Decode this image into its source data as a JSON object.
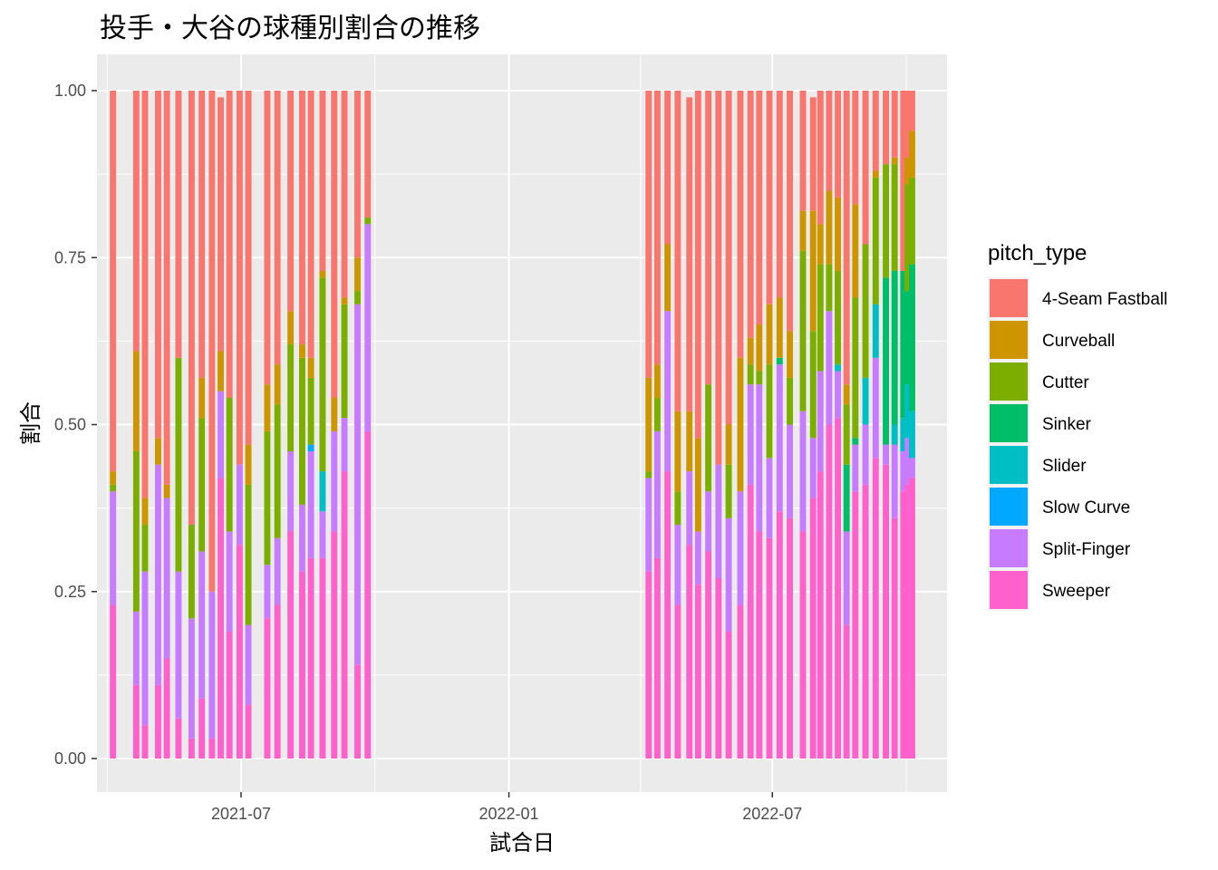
{
  "chart_data": {
    "type": "bar",
    "stacked": true,
    "title": "投手・大谷の球種別割合の推移",
    "xlabel": "試合日",
    "ylabel": "割合",
    "ylim": [
      0,
      1
    ],
    "x_range": [
      "2021-03-24",
      "2022-10-29"
    ],
    "x_ticks": [
      "2021-07",
      "2022-01",
      "2022-07"
    ],
    "y_ticks": [
      "0.00",
      "0.25",
      "0.50",
      "0.75",
      "1.00"
    ],
    "grid": true,
    "legend": {
      "title": "pitch_type",
      "position": "right",
      "entries": [
        "4-Seam Fastball",
        "Curveball",
        "Cutter",
        "Sinker",
        "Slider",
        "Slow Curve",
        "Split-Finger",
        "Sweeper"
      ]
    },
    "colors": {
      "4-Seam Fastball": "#F8766D",
      "Curveball": "#CD9600",
      "Cutter": "#7CAE00",
      "Sinker": "#00BE67",
      "Slider": "#00BFC4",
      "Slow Curve": "#00A9FF",
      "Split-Finger": "#C77CFF",
      "Sweeper": "#FF61CC"
    },
    "series_order": [
      "Sweeper",
      "Split-Finger",
      "Slow Curve",
      "Slider",
      "Sinker",
      "Cutter",
      "Curveball",
      "4-Seam Fastball"
    ],
    "bars": [
      {
        "date": "2021-04-04",
        "Sweeper": 0.23,
        "Split-Finger": 0.17,
        "Cutter": 0.01,
        "Curveball": 0.02,
        "4-Seam Fastball": 0.57
      },
      {
        "date": "2021-04-20",
        "Sweeper": 0.11,
        "Split-Finger": 0.11,
        "Cutter": 0.24,
        "Curveball": 0.15,
        "4-Seam Fastball": 0.39
      },
      {
        "date": "2021-04-26",
        "Sweeper": 0.05,
        "Split-Finger": 0.23,
        "Cutter": 0.07,
        "Curveball": 0.04,
        "4-Seam Fastball": 0.61
      },
      {
        "date": "2021-05-05",
        "Sweeper": 0.11,
        "Split-Finger": 0.33,
        "Cutter": 0.0,
        "Curveball": 0.04,
        "4-Seam Fastball": 0.52
      },
      {
        "date": "2021-05-11",
        "Sweeper": 0.15,
        "Split-Finger": 0.24,
        "Cutter": 0.0,
        "Curveball": 0.02,
        "4-Seam Fastball": 0.59
      },
      {
        "date": "2021-05-19",
        "Sweeper": 0.06,
        "Split-Finger": 0.22,
        "Cutter": 0.32,
        "Curveball": 0.0,
        "4-Seam Fastball": 0.4
      },
      {
        "date": "2021-05-28",
        "Sweeper": 0.03,
        "Split-Finger": 0.18,
        "Cutter": 0.14,
        "Curveball": 0.0,
        "4-Seam Fastball": 0.65
      },
      {
        "date": "2021-06-04",
        "Sweeper": 0.09,
        "Split-Finger": 0.22,
        "Cutter": 0.2,
        "Curveball": 0.06,
        "4-Seam Fastball": 0.43
      },
      {
        "date": "2021-06-11",
        "Sweeper": 0.03,
        "Split-Finger": 0.22,
        "Cutter": 0.0,
        "Curveball": 0.0,
        "4-Seam Fastball": 0.75
      },
      {
        "date": "2021-06-17",
        "Sweeper": 0.42,
        "Split-Finger": 0.13,
        "Cutter": 0.0,
        "Curveball": 0.06,
        "4-Seam Fastball": 0.38
      },
      {
        "date": "2021-06-23",
        "Sweeper": 0.19,
        "Split-Finger": 0.15,
        "Cutter": 0.2,
        "Curveball": 0.0,
        "4-Seam Fastball": 0.46
      },
      {
        "date": "2021-06-30",
        "Sweeper": 0.32,
        "Split-Finger": 0.12,
        "Cutter": 0.0,
        "Curveball": 0.0,
        "4-Seam Fastball": 0.56
      },
      {
        "date": "2021-07-06",
        "Sweeper": 0.08,
        "Split-Finger": 0.12,
        "Cutter": 0.21,
        "Curveball": 0.06,
        "4-Seam Fastball": 0.53
      },
      {
        "date": "2021-07-19",
        "Sweeper": 0.21,
        "Split-Finger": 0.08,
        "Cutter": 0.2,
        "Curveball": 0.07,
        "4-Seam Fastball": 0.44
      },
      {
        "date": "2021-07-26",
        "Sweeper": 0.23,
        "Split-Finger": 0.1,
        "Cutter": 0.2,
        "Curveball": 0.06,
        "4-Seam Fastball": 0.41
      },
      {
        "date": "2021-08-04",
        "Sweeper": 0.34,
        "Split-Finger": 0.12,
        "Cutter": 0.16,
        "Curveball": 0.05,
        "4-Seam Fastball": 0.33
      },
      {
        "date": "2021-08-12",
        "Sweeper": 0.28,
        "Split-Finger": 0.1,
        "Cutter": 0.22,
        "Curveball": 0.02,
        "4-Seam Fastball": 0.38
      },
      {
        "date": "2021-08-18",
        "Sweeper": 0.3,
        "Split-Finger": 0.16,
        "Sinker": 0.0,
        "Slow Curve": 0.01,
        "Cutter": 0.1,
        "Curveball": 0.03,
        "4-Seam Fastball": 0.4
      },
      {
        "date": "2021-08-26",
        "Sweeper": 0.3,
        "Split-Finger": 0.07,
        "Slider": 0.06,
        "Cutter": 0.29,
        "Curveball": 0.01,
        "4-Seam Fastball": 0.27
      },
      {
        "date": "2021-09-03",
        "Sweeper": 0.34,
        "Split-Finger": 0.15,
        "Cutter": 0.0,
        "Curveball": 0.05,
        "4-Seam Fastball": 0.46
      },
      {
        "date": "2021-09-10",
        "Sweeper": 0.43,
        "Split-Finger": 0.08,
        "Cutter": 0.17,
        "Curveball": 0.01,
        "4-Seam Fastball": 0.31
      },
      {
        "date": "2021-09-19",
        "Sweeper": 0.14,
        "Split-Finger": 0.54,
        "Cutter": 0.02,
        "Curveball": 0.05,
        "4-Seam Fastball": 0.25
      },
      {
        "date": "2021-09-26",
        "Sweeper": 0.49,
        "Split-Finger": 0.31,
        "Cutter": 0.01,
        "Curveball": 0.0,
        "4-Seam Fastball": 0.19
      },
      {
        "date": "2022-04-07",
        "Sweeper": 0.28,
        "Split-Finger": 0.14,
        "Cutter": 0.01,
        "Curveball": 0.14,
        "4-Seam Fastball": 0.43
      },
      {
        "date": "2022-04-13",
        "Sweeper": 0.3,
        "Split-Finger": 0.19,
        "Cutter": 0.05,
        "Curveball": 0.05,
        "4-Seam Fastball": 0.41
      },
      {
        "date": "2022-04-20",
        "Sweeper": 0.43,
        "Split-Finger": 0.24,
        "Cutter": 0.0,
        "Curveball": 0.1,
        "4-Seam Fastball": 0.23
      },
      {
        "date": "2022-04-27",
        "Sweeper": 0.23,
        "Split-Finger": 0.12,
        "Cutter": 0.05,
        "Curveball": 0.12,
        "4-Seam Fastball": 0.48
      },
      {
        "date": "2022-05-05",
        "Sweeper": 0.32,
        "Split-Finger": 0.11,
        "Cutter": 0.0,
        "Curveball": 0.09,
        "4-Seam Fastball": 0.47
      },
      {
        "date": "2022-05-11",
        "Sweeper": 0.26,
        "Split-Finger": 0.08,
        "Cutter": 0.0,
        "Curveball": 0.14,
        "4-Seam Fastball": 0.52
      },
      {
        "date": "2022-05-18",
        "Sweeper": 0.31,
        "Split-Finger": 0.09,
        "Cutter": 0.16,
        "Curveball": 0.0,
        "4-Seam Fastball": 0.44
      },
      {
        "date": "2022-05-25",
        "Sweeper": 0.27,
        "Split-Finger": 0.17,
        "Cutter": 0.0,
        "Curveball": 0.0,
        "4-Seam Fastball": 0.56
      },
      {
        "date": "2022-06-01",
        "Sweeper": 0.19,
        "Split-Finger": 0.17,
        "Cutter": 0.08,
        "Curveball": 0.06,
        "4-Seam Fastball": 0.5
      },
      {
        "date": "2022-06-09",
        "Sweeper": 0.23,
        "Split-Finger": 0.17,
        "Cutter": 0.0,
        "Curveball": 0.2,
        "4-Seam Fastball": 0.4
      },
      {
        "date": "2022-06-16",
        "Sweeper": 0.41,
        "Split-Finger": 0.15,
        "Cutter": 0.03,
        "Curveball": 0.04,
        "4-Seam Fastball": 0.37
      },
      {
        "date": "2022-06-22",
        "Sweeper": 0.34,
        "Split-Finger": 0.22,
        "Cutter": 0.02,
        "Curveball": 0.07,
        "4-Seam Fastball": 0.35
      },
      {
        "date": "2022-06-29",
        "Sweeper": 0.33,
        "Split-Finger": 0.12,
        "Cutter": 0.14,
        "Curveball": 0.09,
        "4-Seam Fastball": 0.32
      },
      {
        "date": "2022-07-06",
        "Sweeper": 0.37,
        "Split-Finger": 0.22,
        "Sinker": 0.01,
        "Cutter": 0.0,
        "Curveball": 0.09,
        "4-Seam Fastball": 0.31
      },
      {
        "date": "2022-07-13",
        "Sweeper": 0.36,
        "Split-Finger": 0.14,
        "Cutter": 0.07,
        "Curveball": 0.07,
        "4-Seam Fastball": 0.36
      },
      {
        "date": "2022-07-22",
        "Sweeper": 0.34,
        "Split-Finger": 0.18,
        "Cutter": 0.24,
        "Curveball": 0.06,
        "4-Seam Fastball": 0.18
      },
      {
        "date": "2022-07-29",
        "Sweeper": 0.39,
        "Split-Finger": 0.09,
        "Cutter": 0.16,
        "Curveball": 0.18,
        "4-Seam Fastball": 0.17
      },
      {
        "date": "2022-08-03",
        "Sweeper": 0.43,
        "Split-Finger": 0.15,
        "Cutter": 0.16,
        "Curveball": 0.06,
        "4-Seam Fastball": 0.2
      },
      {
        "date": "2022-08-09",
        "Sweeper": 0.5,
        "Split-Finger": 0.17,
        "Cutter": 0.07,
        "Curveball": 0.11,
        "4-Seam Fastball": 0.15
      },
      {
        "date": "2022-08-15",
        "Sweeper": 0.51,
        "Split-Finger": 0.07,
        "Slider": 0.01,
        "Cutter": 0.14,
        "Curveball": 0.11,
        "4-Seam Fastball": 0.16
      },
      {
        "date": "2022-08-21",
        "Sweeper": 0.2,
        "Split-Finger": 0.14,
        "Sinker": 0.1,
        "Cutter": 0.09,
        "Curveball": 0.03,
        "4-Seam Fastball": 0.44
      },
      {
        "date": "2022-08-27",
        "Sweeper": 0.4,
        "Split-Finger": 0.07,
        "Sinker": 0.01,
        "Cutter": 0.21,
        "Curveball": 0.14,
        "4-Seam Fastball": 0.17
      },
      {
        "date": "2022-09-03",
        "Sweeper": 0.41,
        "Split-Finger": 0.09,
        "Slider": 0.07,
        "Cutter": 0.2,
        "Curveball": 0.0,
        "4-Seam Fastball": 0.23
      },
      {
        "date": "2022-09-10",
        "Sweeper": 0.45,
        "Split-Finger": 0.15,
        "Slider": 0.08,
        "Cutter": 0.19,
        "Curveball": 0.01,
        "4-Seam Fastball": 0.12
      },
      {
        "date": "2022-09-17",
        "Sweeper": 0.44,
        "Split-Finger": 0.03,
        "Sinker": 0.25,
        "Cutter": 0.17,
        "Curveball": 0.0,
        "4-Seam Fastball": 0.11
      },
      {
        "date": "2022-09-23",
        "Sweeper": 0.36,
        "Split-Finger": 0.11,
        "Slider": 0.03,
        "Sinker": 0.23,
        "Cutter": 0.16,
        "Curveball": 0.01,
        "4-Seam Fastball": 0.1
      },
      {
        "date": "2022-09-29",
        "Sweeper": 0.4,
        "Split-Finger": 0.06,
        "Slider": 0.05,
        "Sinker": 0.22,
        "Cutter": 0.0,
        "Curveball": 0.0,
        "4-Seam Fastball": 0.27
      },
      {
        "date": "2022-10-02",
        "Sweeper": 0.41,
        "Split-Finger": 0.07,
        "Slider": 0.08,
        "Sinker": 0.14,
        "Cutter": 0.16,
        "Curveball": 0.04,
        "4-Seam Fastball": 0.1
      },
      {
        "date": "2022-10-05",
        "Sweeper": 0.42,
        "Split-Finger": 0.03,
        "Slider": 0.07,
        "Sinker": 0.22,
        "Cutter": 0.13,
        "Curveball": 0.07,
        "4-Seam Fastball": 0.06
      }
    ]
  }
}
